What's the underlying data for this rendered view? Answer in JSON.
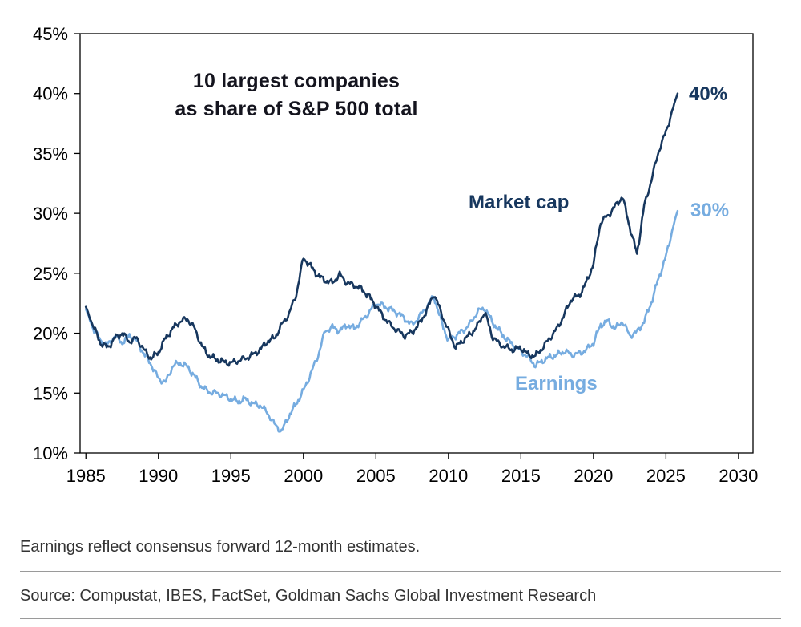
{
  "page": {
    "footnote": "Earnings reflect consensus forward 12-month estimates.",
    "source": "Source: Compustat, IBES, FactSet, Goldman Sachs Global Investment Research"
  },
  "chart_data": {
    "type": "line",
    "title": "10 largest companies as share of S&P 500 total",
    "title_display": "10 largest companies\nas share of S&P 500 total",
    "unit": "%",
    "grid": false,
    "legend": "inline-labels",
    "xlim": [
      1985,
      2030
    ],
    "ylim": [
      10,
      45
    ],
    "x_ticks": [
      1985,
      1990,
      1995,
      2000,
      2005,
      2010,
      2015,
      2020,
      2025,
      2030
    ],
    "x_tick_labels": [
      "1985",
      "1990",
      "1995",
      "2000",
      "2005",
      "2010",
      "2015",
      "2020",
      "2025",
      "2030"
    ],
    "y_ticks": [
      10,
      15,
      20,
      25,
      30,
      35,
      40,
      45
    ],
    "y_tick_labels": [
      "10%",
      "15%",
      "20%",
      "25%",
      "30%",
      "35%",
      "40%",
      "45%"
    ],
    "x": [
      1985,
      1985.5,
      1986,
      1986.5,
      1987,
      1987.5,
      1988,
      1988.5,
      1989,
      1989.5,
      1990,
      1990.5,
      1991,
      1991.5,
      1992,
      1992.5,
      1993,
      1993.5,
      1994,
      1994.5,
      1995,
      1995.5,
      1996,
      1996.5,
      1997,
      1997.5,
      1998,
      1998.5,
      1999,
      1999.5,
      2000,
      2000.5,
      2001,
      2001.5,
      2002,
      2002.5,
      2003,
      2003.5,
      2004,
      2004.5,
      2005,
      2005.5,
      2006,
      2006.5,
      2007,
      2007.5,
      2008,
      2008.5,
      2009,
      2009.5,
      2010,
      2010.5,
      2011,
      2011.5,
      2012,
      2012.5,
      2013,
      2013.5,
      2014,
      2014.5,
      2015,
      2015.5,
      2016,
      2016.5,
      2017,
      2017.5,
      2018,
      2018.5,
      2019,
      2019.5,
      2020,
      2020.5,
      2021,
      2021.5,
      2022,
      2022.5,
      2023,
      2023.5,
      2024,
      2024.5,
      2025,
      2025.5,
      2025.8
    ],
    "series": [
      {
        "name": "Market cap",
        "color": "#17375e",
        "end_label": "40%",
        "values": [
          22.2,
          20.6,
          19.2,
          18.8,
          19.6,
          20.0,
          19.3,
          19.6,
          18.6,
          17.9,
          18.4,
          19.6,
          20.4,
          21.0,
          21.2,
          20.4,
          18.9,
          18.1,
          17.8,
          17.6,
          17.5,
          17.7,
          17.9,
          18.2,
          18.6,
          19.3,
          19.6,
          20.7,
          21.6,
          23.2,
          26.3,
          25.6,
          24.8,
          24.4,
          24.2,
          24.9,
          24.2,
          24.0,
          23.7,
          23.1,
          22.3,
          21.4,
          20.7,
          20.2,
          19.8,
          20.1,
          20.8,
          21.9,
          23.3,
          21.7,
          20.2,
          18.8,
          19.4,
          19.9,
          20.6,
          21.8,
          19.8,
          19.1,
          18.8,
          18.6,
          18.8,
          18.2,
          18.1,
          18.8,
          19.6,
          20.4,
          21.6,
          22.9,
          23.1,
          24.2,
          25.8,
          29.3,
          29.8,
          30.6,
          31.4,
          28.9,
          26.6,
          30.6,
          32.8,
          35.2,
          36.8,
          38.8,
          40.0
        ]
      },
      {
        "name": "Earnings",
        "color": "#76ace0",
        "end_label": "30%",
        "values": [
          22.0,
          20.4,
          19.4,
          19.0,
          19.8,
          19.2,
          19.8,
          19.4,
          18.3,
          17.4,
          16.2,
          15.9,
          17.3,
          17.5,
          17.2,
          16.4,
          15.5,
          15.1,
          15.0,
          14.8,
          14.5,
          14.3,
          14.5,
          14.1,
          14.0,
          13.4,
          12.4,
          11.8,
          13.1,
          14.1,
          15.2,
          16.6,
          18.1,
          20.2,
          20.5,
          20.2,
          20.7,
          20.4,
          21.0,
          21.7,
          22.5,
          22.3,
          22.0,
          21.7,
          21.2,
          20.7,
          21.4,
          22.2,
          23.1,
          21.0,
          19.4,
          19.8,
          20.2,
          20.8,
          21.8,
          22.1,
          21.0,
          20.2,
          19.5,
          19.0,
          18.5,
          18.0,
          17.3,
          17.7,
          18.0,
          18.2,
          18.5,
          18.2,
          18.3,
          18.6,
          19.2,
          20.7,
          21.0,
          20.4,
          21.0,
          19.8,
          20.1,
          21.0,
          22.6,
          24.6,
          26.4,
          28.9,
          30.2
        ]
      }
    ]
  }
}
